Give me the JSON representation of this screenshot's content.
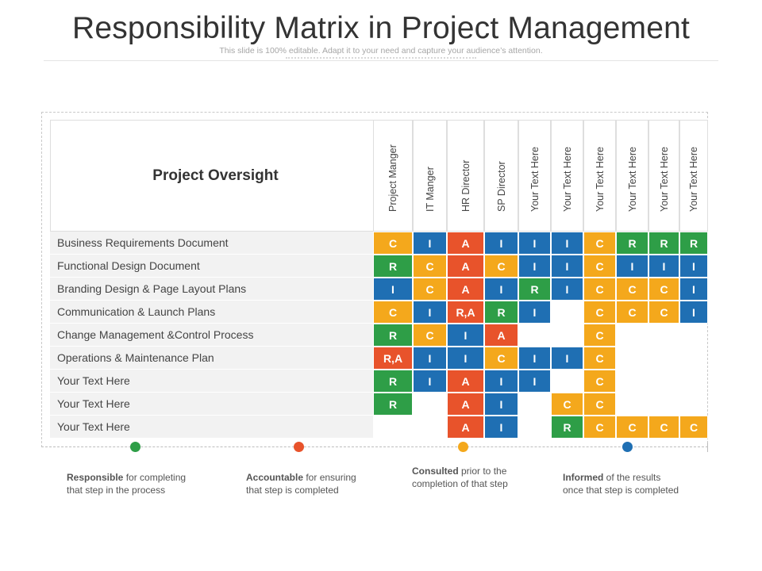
{
  "title": "Responsibility Matrix in Project Management",
  "subtitle": "This slide is 100% editable. Adapt it to your need and capture your audience’s attention.",
  "matrix": {
    "header": "Project Oversight",
    "columns": [
      "Project Manger",
      "IT Manger",
      "HR Director",
      "SP Director",
      "Your Text Here",
      "Your Text Here",
      "Your Text Here",
      "Your Text Here",
      "Your Text Here",
      "Your Text Here"
    ],
    "rows": [
      {
        "label": "Business Requirements Document",
        "cells": [
          "C",
          "I",
          "A",
          "I",
          "I",
          "I",
          "C",
          "R",
          "R",
          "R"
        ]
      },
      {
        "label": "Functional Design Document",
        "cells": [
          "R",
          "C",
          "A",
          "C",
          "I",
          "I",
          "C",
          "I",
          "I",
          "I"
        ]
      },
      {
        "label": "Branding Design & Page Layout Plans",
        "cells": [
          "I",
          "C",
          "A",
          "I",
          "R",
          "I",
          "C",
          "C",
          "C",
          "I"
        ]
      },
      {
        "label": "Communication & Launch Plans",
        "cells": [
          "C",
          "I",
          "R,A",
          "R",
          "I",
          "",
          "C",
          "C",
          "C",
          "I"
        ]
      },
      {
        "label": "Change Management &Control Process",
        "cells": [
          "R",
          "C",
          "I",
          "A",
          "",
          "",
          "C",
          "",
          "",
          ""
        ]
      },
      {
        "label": "Operations & Maintenance Plan",
        "cells": [
          "R,A",
          "I",
          "I",
          "C",
          "I",
          "I",
          "C",
          "",
          "",
          ""
        ]
      },
      {
        "label": "Your Text Here",
        "cells": [
          "R",
          "I",
          "A",
          "I",
          "I",
          "",
          "C",
          "",
          "",
          ""
        ]
      },
      {
        "label": "Your Text Here",
        "cells": [
          "R",
          "",
          "A",
          "I",
          "",
          "C",
          "C",
          "",
          "",
          ""
        ]
      },
      {
        "label": "Your Text Here",
        "cells": [
          "",
          "",
          "A",
          "I",
          "",
          "R",
          "C",
          "C",
          "C",
          "C"
        ]
      }
    ]
  },
  "colors": {
    "R": "#2e9e47",
    "A": "#e8532b",
    "C": "#f4a81c",
    "I": "#1f6fb3",
    "R,A": "#e8532b"
  },
  "legend": [
    {
      "term": "Responsible",
      "rest1": " for completing",
      "line2": "that step in the process",
      "color": "#2e9e47"
    },
    {
      "term": "Accountable",
      "rest1": " for ensuring",
      "line2": "that step is completed",
      "color": "#e8532b"
    },
    {
      "term": "Consulted",
      "rest1": " prior to the",
      "line2": "completion of that step",
      "color": "#f4a81c"
    },
    {
      "term": "Informed",
      "rest1": " of the results",
      "line2": "once that step is completed",
      "color": "#1f6fb3"
    }
  ]
}
